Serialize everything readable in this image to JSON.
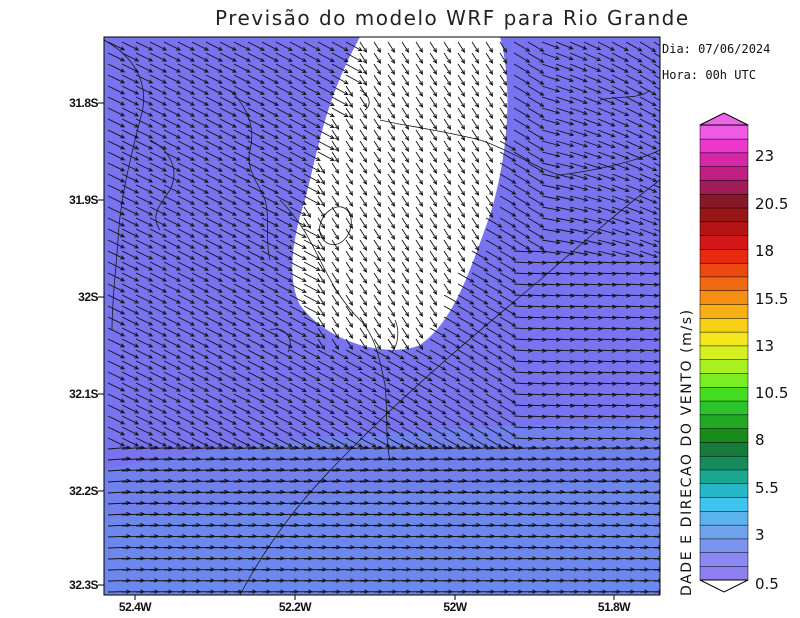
{
  "map": {
    "title": "Previsão do modelo WRF para Rio Grande",
    "date_label": "Dia: 07/06/2024",
    "time_label": "Hora: 00h UTC",
    "lat_labels": [
      "31.8S",
      "31.9S",
      "32S",
      "32.1S",
      "32.2S",
      "32.3S"
    ],
    "lon_labels": [
      "52.4W",
      "52.2W",
      "52W",
      "51.8W"
    ],
    "colorbar": {
      "title": "DADE E DIRECAO DO VENTO (m/s)",
      "labels": [
        "23",
        "20.5",
        "18",
        "15.5",
        "13",
        "10.5",
        "8",
        "5.5",
        "3",
        "0.5"
      ],
      "colors": [
        "#8c7ff0",
        "#8a88f2",
        "#7b95ee",
        "#6fa3ee",
        "#5cb3ee",
        "#3ec4ee",
        "#26b8c8",
        "#1aa890",
        "#158a5a",
        "#167a3a",
        "#1a8a1a",
        "#22a822",
        "#2cc42c",
        "#44dd22",
        "#7aee22",
        "#aaf022",
        "#d6f022",
        "#f4e81e",
        "#f8d018",
        "#f8b016",
        "#f48e14",
        "#f06a12",
        "#ec4810",
        "#e82a10",
        "#d41818",
        "#b41414",
        "#961616",
        "#861828",
        "#a01c58",
        "#c01e80",
        "#d826a8",
        "#ec36cc",
        "#f058e6"
      ]
    },
    "field_colors": {
      "background": "#7873ee",
      "calm": "#ffffff",
      "lower_band": "#6d86ec"
    }
  }
}
